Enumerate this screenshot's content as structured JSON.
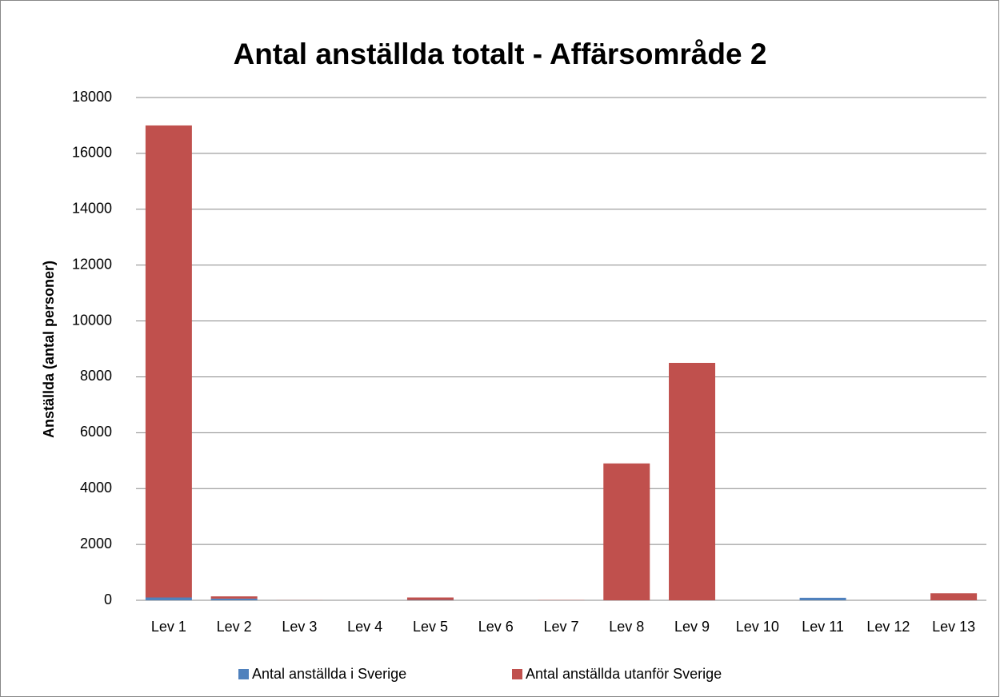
{
  "chart_data": {
    "type": "stacked_bar",
    "title": "Antal anställda totalt - Affärsområde 2",
    "y_label": "Anställda (antal personer)",
    "categories": [
      "Lev 1",
      "Lev 2",
      "Lev 3",
      "Lev 4",
      "Lev 5",
      "Lev 6",
      "Lev 7",
      "Lev 8",
      "Lev 9",
      "Lev 10",
      "Lev 11",
      "Lev 12",
      "Lev 13"
    ],
    "series": [
      {
        "name": "Antal anställda i Sverige",
        "color": "#4f81bd",
        "values": [
          100,
          60,
          0,
          0,
          10,
          0,
          0,
          0,
          0,
          0,
          90,
          0,
          0
        ]
      },
      {
        "name": "Antal anställda utanför Sverige",
        "color": "#c0504d",
        "values": [
          16900,
          80,
          5,
          0,
          90,
          0,
          10,
          4900,
          8500,
          0,
          0,
          0,
          250
        ]
      }
    ],
    "ylim": [
      0,
      18000
    ],
    "yticks": [
      0,
      2000,
      4000,
      6000,
      8000,
      10000,
      12000,
      14000,
      16000,
      18000
    ],
    "grid": true,
    "legend": "bottom"
  }
}
